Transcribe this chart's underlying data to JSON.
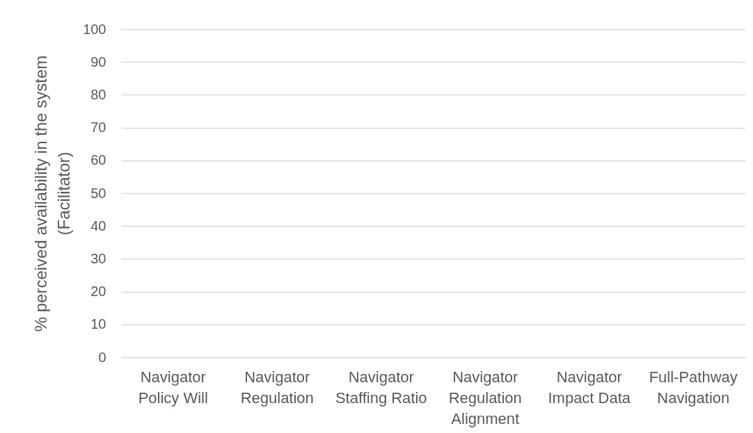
{
  "chart_data": {
    "type": "bar",
    "ylabel": "% perceived availability in the system (Facilitator)",
    "categories": [
      "Navigator Policy Will",
      "Navigator Regulation",
      "Navigator Staffing Ratio",
      "Navigator Regulation Alignment",
      "Navigator Impact Data",
      "Full-Pathway Navigation"
    ],
    "values": [
      null,
      null,
      null,
      null,
      null,
      null
    ],
    "ylim": [
      0,
      100
    ],
    "yticks": [
      0,
      10,
      20,
      30,
      40,
      50,
      60,
      70,
      80,
      90,
      100
    ],
    "grid": "y"
  }
}
